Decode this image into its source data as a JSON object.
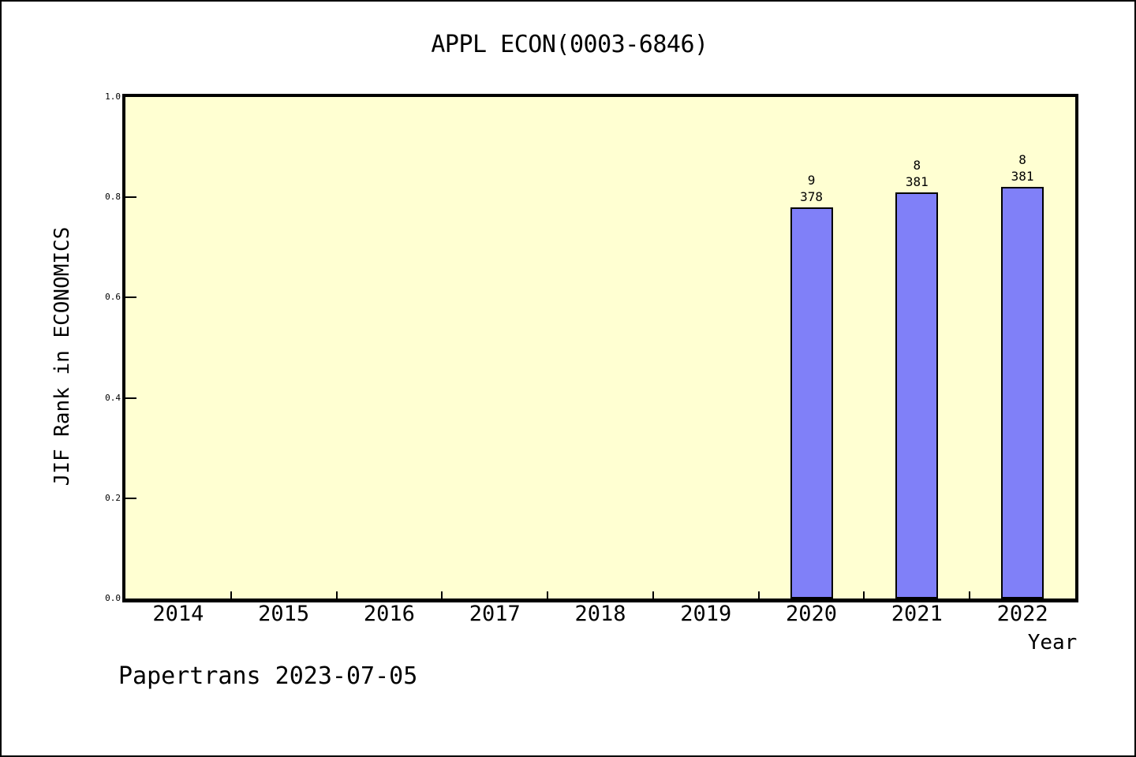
{
  "window": {
    "page_bg": "#ffffff",
    "border_color": "#000000"
  },
  "chart_data": {
    "type": "bar",
    "title": "APPL ECON(0003-6846)",
    "xlabel": "Year",
    "ylabel": "JIF Rank in ECONOMICS",
    "categories": [
      "2014",
      "2015",
      "2016",
      "2017",
      "2018",
      "2019",
      "2020",
      "2021",
      "2022"
    ],
    "values": [
      null,
      null,
      null,
      null,
      null,
      null,
      0.78,
      0.81,
      0.82
    ],
    "bar_annotations": [
      null,
      null,
      null,
      null,
      null,
      null,
      [
        "9",
        "378"
      ],
      [
        "8",
        "381"
      ],
      [
        "8",
        "381"
      ]
    ],
    "ylim": [
      0.0,
      1.0
    ],
    "ytick_labels": [
      "0.0",
      "0.2",
      "0.4",
      "0.6",
      "0.8",
      "1.0"
    ],
    "grid": false,
    "legend": null,
    "colors": {
      "bar_fill": "#8080f8",
      "bar_edge": "#000000",
      "plot_bg": "#ffffd2",
      "axis": "#000000",
      "text": "#000000"
    }
  },
  "footer": {
    "text": "Papertrans 2023-07-05"
  }
}
